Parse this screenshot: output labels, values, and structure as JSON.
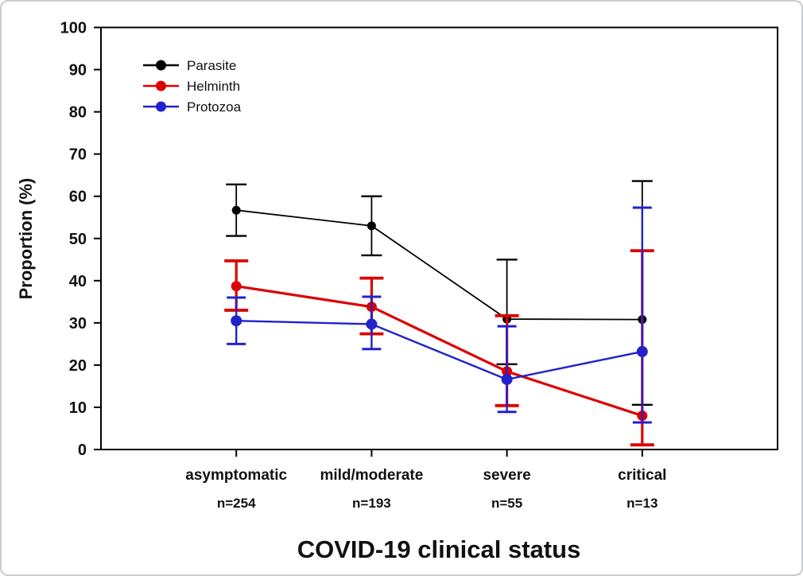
{
  "chart_data": {
    "type": "line",
    "title": "",
    "xlabel": "COVID-19 clinical status",
    "ylabel": "Proportion (%)",
    "ylim": [
      0,
      100
    ],
    "y_tick_step": 10,
    "y_tick_labels": [
      "0",
      "10",
      "20",
      "30",
      "40",
      "50",
      "60",
      "70",
      "80",
      "90",
      "100"
    ],
    "grid": false,
    "legend_position": "top-left-inside",
    "categories": [
      "asymptomatic",
      "mild/moderate",
      "severe",
      "critical"
    ],
    "category_sublabels": [
      "n=254",
      "n=193",
      "n=55",
      "n=13"
    ],
    "error_bars": "95% CI",
    "series": [
      {
        "name": "Parasite",
        "color": "#000000",
        "values": [
          56.7,
          53.0,
          30.9,
          30.8
        ],
        "ci_low": [
          50.6,
          46.0,
          20.2,
          10.6
        ],
        "ci_high": [
          62.8,
          60.0,
          45.0,
          63.6
        ]
      },
      {
        "name": "Helminth",
        "color": "#dd0000",
        "values": [
          38.7,
          33.8,
          18.5,
          8.0
        ],
        "ci_low": [
          33.0,
          27.4,
          10.4,
          1.1
        ],
        "ci_high": [
          44.7,
          40.6,
          31.7,
          47.1
        ]
      },
      {
        "name": "Protozoa",
        "color": "#2222cc",
        "values": [
          30.5,
          29.7,
          16.6,
          23.2
        ],
        "ci_low": [
          25.0,
          23.8,
          8.9,
          6.4
        ],
        "ci_high": [
          36.0,
          36.2,
          29.2,
          57.3
        ]
      }
    ]
  }
}
